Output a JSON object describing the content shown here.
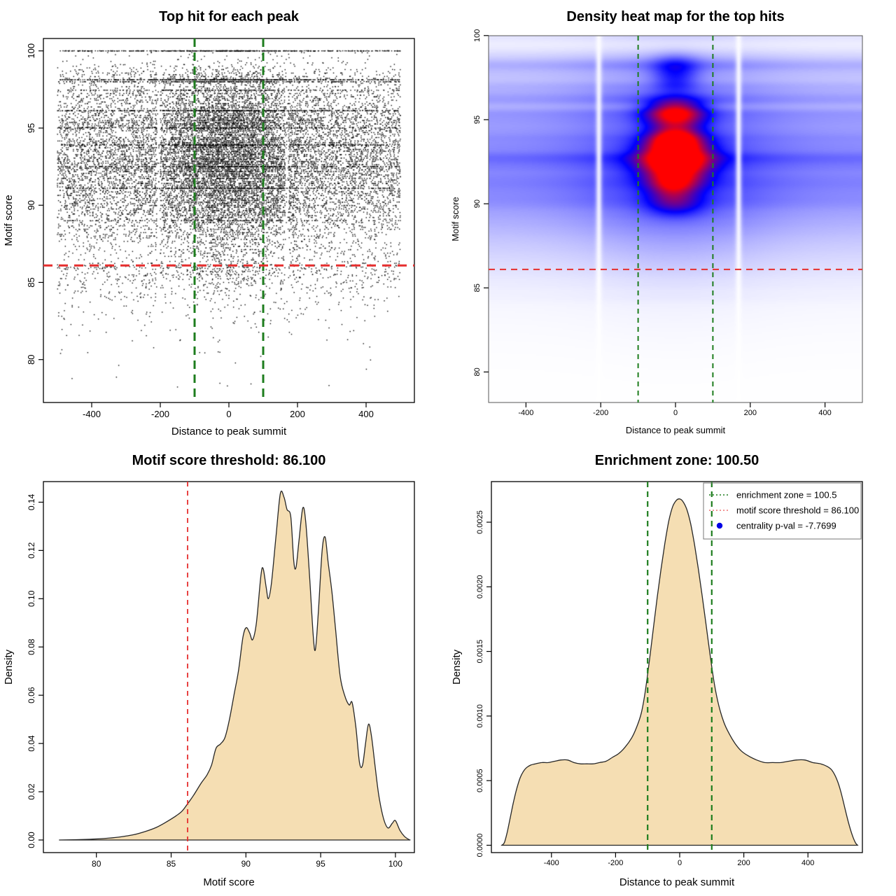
{
  "figure": {
    "background": "#ffffff",
    "point_color": "#000000",
    "area_fill": "#f5deb3",
    "area_stroke": "#262626",
    "red_line_color": "#e62e2e",
    "green_line_color": "#1e7d1e",
    "legend_blue": "#0000e6"
  },
  "chart_data": [
    {
      "type": "scatter",
      "title": "Top hit for each peak",
      "xlabel": "Distance to peak summit",
      "ylabel": "Motif score",
      "xlim": [
        -540,
        540
      ],
      "ylim": [
        77.2,
        100.8
      ],
      "xticks": {
        "values": [
          -400,
          -200,
          0,
          200,
          400
        ],
        "labels": [
          "-400",
          "-200",
          "0",
          "200",
          "400"
        ]
      },
      "yticks": {
        "values": [
          80,
          85,
          90,
          95,
          100
        ],
        "labels": [
          "80",
          "85",
          "90",
          "95",
          "100"
        ]
      },
      "hline": {
        "name": "motif score threshold",
        "value": 86.1,
        "color": "#e62e2e",
        "style": "dashed",
        "width": 3
      },
      "vlines": {
        "name": "enrichment zone",
        "values": [
          -100,
          100
        ],
        "color": "#1e7d1e",
        "style": "dashed",
        "width": 3
      },
      "scatter_model": {
        "seed": 1337,
        "n_main": 16000,
        "n_top_row": 480,
        "n_below": 950,
        "score_quantum": 0.11,
        "score_top": 100,
        "score_threshold": 86.15,
        "score_min": 78,
        "below_lambda": 1.35,
        "central_fraction": 0.36,
        "central_sigma": 115,
        "x_range": [
          -500,
          500
        ],
        "gap_x": [
          -205,
          169
        ],
        "gap_halfwidth": 5,
        "hot_rows": [
          [
            98.13,
            450
          ],
          [
            98.0,
            300
          ],
          [
            96.12,
            380
          ],
          [
            95.0,
            220
          ],
          [
            93.9,
            260
          ],
          [
            92.5,
            260
          ],
          [
            91.1,
            220
          ],
          [
            97.45,
            180
          ],
          [
            89.0,
            150
          ]
        ]
      }
    },
    {
      "type": "heatmap",
      "title": "Density heat map for the top hits",
      "xlabel": "Distance to peak summit",
      "ylabel": "Motif score",
      "xlim": [
        -500,
        500
      ],
      "ylim": [
        78.2,
        100.0
      ],
      "xticks": {
        "values": [
          -400,
          -200,
          0,
          200,
          400
        ],
        "labels": [
          "-400",
          "-200",
          "0",
          "200",
          "400"
        ]
      },
      "yticks": {
        "values": [
          80,
          85,
          90,
          95,
          100
        ],
        "labels": [
          "80",
          "85",
          "90",
          "95",
          "100"
        ]
      },
      "hline": {
        "name": "motif score threshold",
        "value": 86.1,
        "color": "#e62e2e",
        "style": "dashed",
        "width": 2
      },
      "vlines": {
        "name": "enrichment zone",
        "values": [
          -100,
          100
        ],
        "color": "#1e7d1e",
        "style": "dashed",
        "width": 2
      },
      "colormap": [
        "#ffffff",
        "#0000ff",
        "#ff0000"
      ],
      "density_model": {
        "score_bands": [
          [
            100,
            0.12
          ],
          [
            98.9,
            0.1
          ],
          [
            98.5,
            0.2
          ],
          [
            98.15,
            0.42
          ],
          [
            97.6,
            0.26
          ],
          [
            97.0,
            0.38
          ],
          [
            96.5,
            0.33
          ],
          [
            96.1,
            0.48
          ],
          [
            95.4,
            0.55
          ],
          [
            94.9,
            0.45
          ],
          [
            94.4,
            0.42
          ],
          [
            93.9,
            0.55
          ],
          [
            93.4,
            0.52
          ],
          [
            92.9,
            0.6
          ],
          [
            92.55,
            0.62
          ],
          [
            92.1,
            0.58
          ],
          [
            91.6,
            0.55
          ],
          [
            91.15,
            0.58
          ],
          [
            90.7,
            0.5
          ],
          [
            90.25,
            0.52
          ],
          [
            89.8,
            0.45
          ],
          [
            89.3,
            0.38
          ],
          [
            88.8,
            0.32
          ],
          [
            88.3,
            0.26
          ],
          [
            87.8,
            0.2
          ],
          [
            87.3,
            0.16
          ],
          [
            86.8,
            0.12
          ],
          [
            86.3,
            0.09
          ],
          [
            85.8,
            0.06
          ],
          [
            85.2,
            0.04
          ],
          [
            84.5,
            0.025
          ],
          [
            92.5,
            0.35,
            4.5
          ]
        ],
        "band_sigma": 0.26,
        "center_boost": {
          "base": 0.55,
          "amp": 0.45,
          "sigma": 170
        },
        "blobs": [
          [
            0,
            95.35,
            52,
            0.6,
            2.4
          ],
          [
            0,
            93.8,
            46,
            0.5,
            2.1
          ],
          [
            0,
            92.6,
            62,
            0.8,
            3.2
          ],
          [
            0,
            91.2,
            48,
            0.55,
            1.1
          ],
          [
            0,
            89.95,
            52,
            0.5,
            0.8
          ],
          [
            0,
            98.1,
            42,
            0.5,
            0.75
          ],
          [
            0,
            97.2,
            40,
            0.45,
            0.5
          ],
          [
            -12,
            90.9,
            40,
            0.6,
            0.5
          ]
        ],
        "gap_x": [
          -205,
          169
        ],
        "gap_sigma": 6,
        "gap_depth": 0.92,
        "norm": 3.0
      }
    },
    {
      "type": "area",
      "title": "Motif score threshold: 86.100",
      "xlabel": "Motif score",
      "ylabel": "Density",
      "xlim": [
        77.4,
        100.9
      ],
      "ylim": [
        0,
        0.149
      ],
      "xticks": {
        "values": [
          80,
          85,
          90,
          95,
          100
        ],
        "labels": [
          "80",
          "85",
          "90",
          "95",
          "100"
        ]
      },
      "yticks": {
        "values": [
          0,
          0.02,
          0.04,
          0.06,
          0.08,
          0.1,
          0.12,
          0.14
        ],
        "labels": [
          "0.00",
          "0.02",
          "0.04",
          "0.06",
          "0.08",
          "0.10",
          "0.12",
          "0.14"
        ]
      },
      "vline": {
        "name": "motif score threshold",
        "value": 86.1,
        "color": "#e62e2e",
        "style": "dashed",
        "width": 1.8
      },
      "fill": "#f5deb3",
      "curve": [
        [
          77.5,
          0
        ],
        [
          78.5,
          0.0001
        ],
        [
          79.5,
          0.0003
        ],
        [
          80.5,
          0.0006
        ],
        [
          81.5,
          0.0012
        ],
        [
          82.5,
          0.0022
        ],
        [
          83.3,
          0.0036
        ],
        [
          84,
          0.0052
        ],
        [
          84.6,
          0.0072
        ],
        [
          85.2,
          0.0095
        ],
        [
          85.7,
          0.0118
        ],
        [
          86.1,
          0.015
        ],
        [
          86.5,
          0.0185
        ],
        [
          87,
          0.0235
        ],
        [
          87.4,
          0.027
        ],
        [
          87.7,
          0.031
        ],
        [
          88,
          0.038
        ],
        [
          88.3,
          0.0398
        ],
        [
          88.6,
          0.0425
        ],
        [
          88.9,
          0.05
        ],
        [
          89.2,
          0.06
        ],
        [
          89.5,
          0.07
        ],
        [
          89.8,
          0.084
        ],
        [
          90.02,
          0.088
        ],
        [
          90.25,
          0.0858
        ],
        [
          90.45,
          0.083
        ],
        [
          90.7,
          0.09
        ],
        [
          91,
          0.1095
        ],
        [
          91.15,
          0.1125
        ],
        [
          91.35,
          0.105
        ],
        [
          91.5,
          0.1
        ],
        [
          91.7,
          0.106
        ],
        [
          92,
          0.125
        ],
        [
          92.3,
          0.1435
        ],
        [
          92.55,
          0.142
        ],
        [
          92.75,
          0.137
        ],
        [
          93,
          0.134
        ],
        [
          93.2,
          0.1155
        ],
        [
          93.35,
          0.113
        ],
        [
          93.55,
          0.124
        ],
        [
          93.8,
          0.1375
        ],
        [
          94,
          0.132
        ],
        [
          94.25,
          0.11
        ],
        [
          94.5,
          0.085
        ],
        [
          94.65,
          0.079
        ],
        [
          94.85,
          0.095
        ],
        [
          95.1,
          0.12
        ],
        [
          95.3,
          0.1255
        ],
        [
          95.5,
          0.115
        ],
        [
          95.75,
          0.103
        ],
        [
          96,
          0.087
        ],
        [
          96.3,
          0.068
        ],
        [
          96.6,
          0.06
        ],
        [
          96.9,
          0.056
        ],
        [
          97.1,
          0.057
        ],
        [
          97.35,
          0.047
        ],
        [
          97.6,
          0.032
        ],
        [
          97.8,
          0.031
        ],
        [
          98,
          0.04
        ],
        [
          98.2,
          0.048
        ],
        [
          98.4,
          0.043
        ],
        [
          98.65,
          0.03
        ],
        [
          98.9,
          0.018
        ],
        [
          99.2,
          0.009
        ],
        [
          99.5,
          0.005
        ],
        [
          99.8,
          0.007
        ],
        [
          100,
          0.008
        ],
        [
          100.3,
          0.004
        ],
        [
          100.6,
          0.0015
        ],
        [
          100.9,
          0.0002
        ],
        [
          101,
          0
        ]
      ]
    },
    {
      "type": "area",
      "title": "Enrichment zone: 100.50",
      "xlabel": "Distance to peak summit",
      "ylabel": "Density",
      "xlim": [
        -560,
        565
      ],
      "ylim": [
        0,
        0.00282
      ],
      "xticks": {
        "values": [
          -400,
          -200,
          0,
          200,
          400
        ],
        "labels": [
          "-400",
          "-200",
          "0",
          "200",
          "400"
        ]
      },
      "yticks": {
        "values": [
          0,
          0.0005,
          0.001,
          0.0015,
          0.002,
          0.0025
        ],
        "labels": [
          "0.0000",
          "0.0005",
          "0.0010",
          "0.0015",
          "0.0020",
          "0.0025"
        ]
      },
      "vlines": {
        "name": "enrichment zone",
        "values": [
          -100,
          100
        ],
        "color": "#1e7d1e",
        "style": "dashed",
        "width": 2.2
      },
      "fill": "#f5deb3",
      "legend": {
        "entries": [
          {
            "marker": "dotted-line",
            "color": "#1e7d1e",
            "label": "enrichment zone = 100.5"
          },
          {
            "marker": "dotted-line",
            "color": "#ee7070",
            "label": "motif score threshold = 86.100"
          },
          {
            "marker": "dot",
            "color": "#0000e6",
            "label": "centrality p-val = -7.7699"
          }
        ]
      },
      "curve": [
        [
          -555,
          0
        ],
        [
          -547,
          2e-05
        ],
        [
          -538,
          0.0001
        ],
        [
          -528,
          0.00022
        ],
        [
          -518,
          0.00034
        ],
        [
          -508,
          0.00044
        ],
        [
          -498,
          0.00052
        ],
        [
          -488,
          0.00057
        ],
        [
          -478,
          0.0006
        ],
        [
          -465,
          0.00062
        ],
        [
          -450,
          0.00063
        ],
        [
          -430,
          0.00064
        ],
        [
          -410,
          0.00064
        ],
        [
          -390,
          0.00065
        ],
        [
          -370,
          0.00066
        ],
        [
          -350,
          0.00066
        ],
        [
          -330,
          0.00064
        ],
        [
          -310,
          0.00063
        ],
        [
          -290,
          0.00063
        ],
        [
          -270,
          0.00063
        ],
        [
          -250,
          0.00064
        ],
        [
          -230,
          0.00065
        ],
        [
          -210,
          0.00068
        ],
        [
          -190,
          0.00071
        ],
        [
          -170,
          0.00076
        ],
        [
          -150,
          0.00083
        ],
        [
          -135,
          0.00091
        ],
        [
          -120,
          0.00102
        ],
        [
          -108,
          0.00118
        ],
        [
          -95,
          0.00142
        ],
        [
          -82,
          0.00168
        ],
        [
          -70,
          0.00192
        ],
        [
          -58,
          0.00214
        ],
        [
          -46,
          0.00234
        ],
        [
          -34,
          0.00251
        ],
        [
          -22,
          0.00262
        ],
        [
          -10,
          0.00267
        ],
        [
          0,
          0.00268
        ],
        [
          10,
          0.00266
        ],
        [
          22,
          0.0026
        ],
        [
          34,
          0.00249
        ],
        [
          46,
          0.00233
        ],
        [
          58,
          0.00214
        ],
        [
          70,
          0.00193
        ],
        [
          82,
          0.00171
        ],
        [
          95,
          0.00147
        ],
        [
          108,
          0.00125
        ],
        [
          122,
          0.00108
        ],
        [
          138,
          0.00095
        ],
        [
          155,
          0.00086
        ],
        [
          172,
          0.00079
        ],
        [
          192,
          0.00073
        ],
        [
          215,
          0.00069
        ],
        [
          240,
          0.00066
        ],
        [
          265,
          0.00064
        ],
        [
          290,
          0.00064
        ],
        [
          315,
          0.00064
        ],
        [
          340,
          0.00065
        ],
        [
          365,
          0.00066
        ],
        [
          390,
          0.00066
        ],
        [
          415,
          0.00064
        ],
        [
          440,
          0.00063
        ],
        [
          460,
          0.00061
        ],
        [
          475,
          0.00058
        ],
        [
          490,
          0.00051
        ],
        [
          502,
          0.00042
        ],
        [
          514,
          0.0003
        ],
        [
          526,
          0.00018
        ],
        [
          538,
          8e-05
        ],
        [
          548,
          2e-05
        ],
        [
          555,
          0
        ]
      ]
    }
  ]
}
